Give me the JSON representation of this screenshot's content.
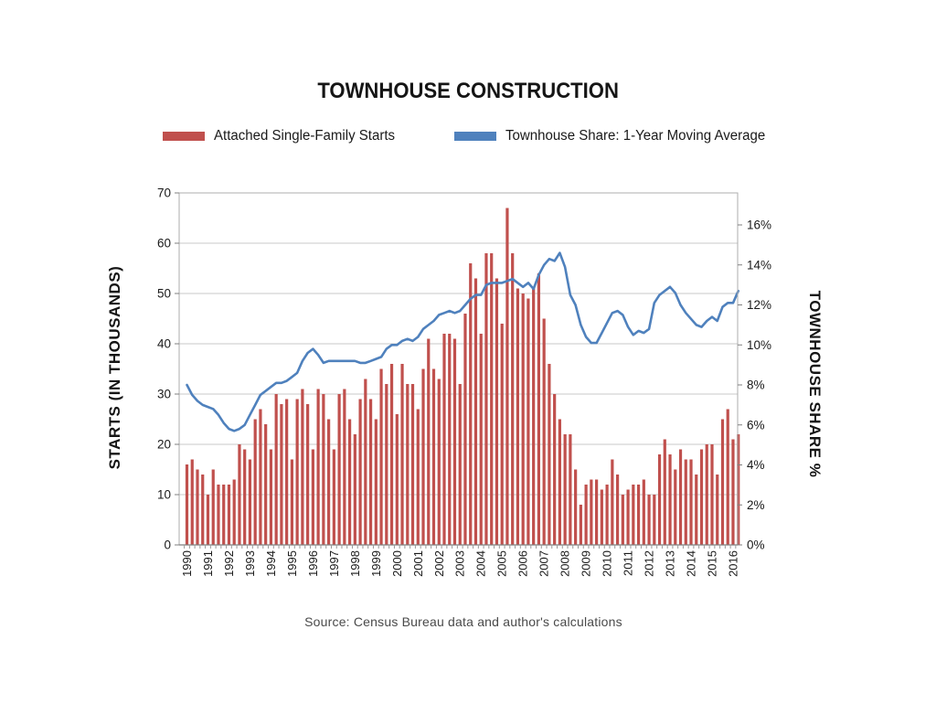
{
  "source": "Source: Census Bureau data and author's calculations",
  "chart_data": {
    "type": "combo",
    "title": "TOWNHOUSE CONSTRUCTION",
    "frequency": "quarterly",
    "grid": true,
    "legend_position": "top",
    "categories": [
      "1990",
      "1991",
      "1992",
      "1993",
      "1994",
      "1995",
      "1996",
      "1997",
      "1998",
      "1999",
      "2000",
      "2001",
      "2002",
      "2003",
      "2004",
      "2005",
      "2006",
      "2007",
      "2008",
      "2009",
      "2010",
      "2011",
      "2012",
      "2013",
      "2014",
      "2015",
      "2016"
    ],
    "left_axis": {
      "label": "STARTS (IN THOUSANDS)",
      "ylim": [
        0,
        70
      ],
      "ticks": [
        0,
        10,
        20,
        30,
        40,
        50,
        60,
        70
      ]
    },
    "right_axis": {
      "label": "TOWNHOUSE SHARE %",
      "ylim": [
        0,
        16
      ],
      "ticks": [
        "0%",
        "2%",
        "4%",
        "6%",
        "8%",
        "10%",
        "12%",
        "14%",
        "16%"
      ]
    },
    "series": [
      {
        "name": "Attached Single-Family Starts",
        "type": "bar",
        "axis": "left",
        "color": "#c0504d",
        "values": [
          16,
          17,
          15,
          14,
          10,
          15,
          12,
          12,
          12,
          13,
          20,
          19,
          17,
          25,
          27,
          24,
          19,
          30,
          28,
          29,
          17,
          29,
          31,
          28,
          19,
          31,
          30,
          25,
          19,
          30,
          31,
          25,
          22,
          29,
          33,
          29,
          25,
          35,
          32,
          36,
          26,
          36,
          32,
          32,
          27,
          35,
          41,
          35,
          33,
          42,
          42,
          41,
          32,
          46,
          56,
          53,
          42,
          58,
          58,
          53,
          44,
          67,
          58,
          51,
          50,
          49,
          51,
          54,
          45,
          36,
          30,
          25,
          22,
          22,
          15,
          8,
          12,
          13,
          13,
          11,
          12,
          17,
          14,
          10,
          11,
          12,
          12,
          13,
          10,
          10,
          18,
          21,
          18,
          15,
          19,
          17,
          17,
          14,
          19,
          20,
          20,
          14,
          25,
          27,
          21,
          22
        ]
      },
      {
        "name": "Townhouse Share: 1-Year Moving Average",
        "type": "line",
        "axis": "right",
        "color": "#4f81bd",
        "values": [
          8.0,
          7.5,
          7.2,
          7.0,
          6.9,
          6.8,
          6.5,
          6.1,
          5.8,
          5.7,
          5.8,
          6.0,
          6.5,
          7.0,
          7.5,
          7.7,
          7.9,
          8.1,
          8.1,
          8.2,
          8.4,
          8.6,
          9.2,
          9.6,
          9.8,
          9.5,
          9.1,
          9.2,
          9.2,
          9.2,
          9.2,
          9.2,
          9.2,
          9.1,
          9.1,
          9.2,
          9.3,
          9.4,
          9.8,
          10.0,
          10.0,
          10.2,
          10.3,
          10.2,
          10.4,
          10.8,
          11.0,
          11.2,
          11.5,
          11.6,
          11.7,
          11.6,
          11.7,
          12.0,
          12.3,
          12.5,
          12.5,
          13.0,
          13.1,
          13.1,
          13.1,
          13.2,
          13.3,
          13.1,
          12.9,
          13.1,
          12.8,
          13.5,
          14.0,
          14.3,
          14.2,
          14.6,
          13.9,
          12.5,
          12.0,
          11.0,
          10.4,
          10.1,
          10.1,
          10.6,
          11.1,
          11.6,
          11.7,
          11.5,
          10.9,
          10.5,
          10.7,
          10.6,
          10.8,
          12.1,
          12.5,
          12.7,
          12.9,
          12.6,
          12.0,
          11.6,
          11.3,
          11.0,
          10.9,
          11.2,
          11.4,
          11.2,
          11.9,
          12.1,
          12.1,
          12.7
        ]
      }
    ]
  }
}
